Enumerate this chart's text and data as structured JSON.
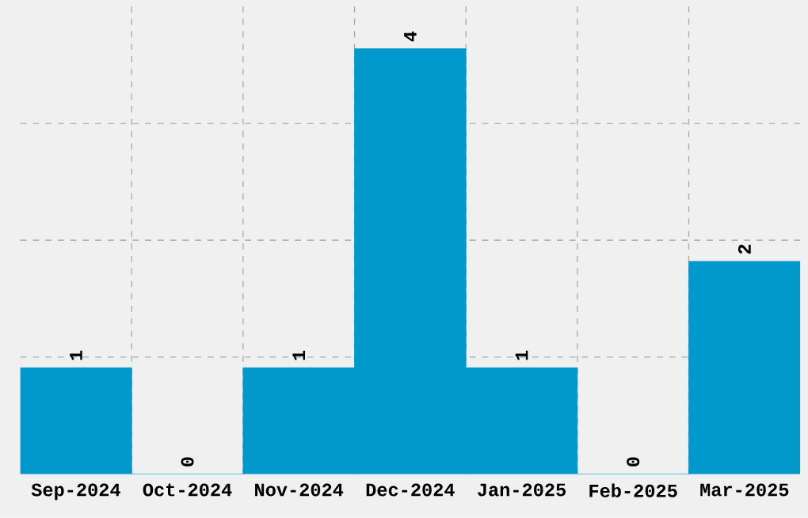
{
  "chart_data": {
    "type": "bar",
    "categories": [
      "Sep-2024",
      "Oct-2024",
      "Nov-2024",
      "Dec-2024",
      "Jan-2025",
      "Feb-2025",
      "Mar-2025"
    ],
    "values": [
      1,
      0,
      1,
      4,
      1,
      0,
      2
    ],
    "color": "#0099cc",
    "data_labels": true,
    "grid": true,
    "tick_labels": "x",
    "ylim": [
      0,
      4.4
    ],
    "yticks": [
      {
        "value": 1.1,
        "label": null
      },
      {
        "value": 2.2,
        "label": null
      },
      {
        "value": 3.3,
        "label": null
      }
    ]
  }
}
